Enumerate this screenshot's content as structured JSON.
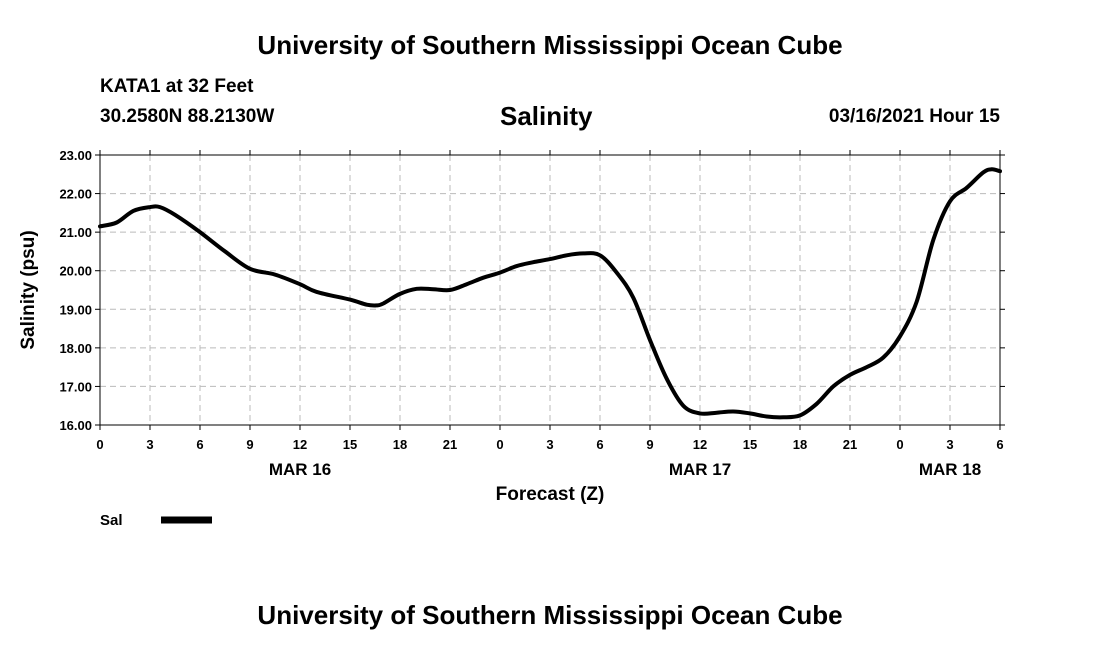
{
  "header": {
    "title": "University of Southern Mississippi Ocean Cube",
    "station": "KATA1 at 32 Feet",
    "coords": "30.2580N 88.2130W",
    "datetime": "03/16/2021 Hour 15"
  },
  "footer": {
    "title": "University of Southern Mississippi Ocean Cube"
  },
  "chart_data": {
    "type": "line",
    "title": "Salinity",
    "xlabel": "Forecast (Z)",
    "ylabel": "Salinity (psu)",
    "xlim": [
      0,
      54
    ],
    "ylim": [
      16.0,
      23.0
    ],
    "grid": true,
    "line_color": "#000000",
    "y_ticks": [
      "16.00",
      "17.00",
      "18.00",
      "19.00",
      "20.00",
      "21.00",
      "22.00",
      "23.00"
    ],
    "x_ticks": [
      {
        "x": 0,
        "label": "0"
      },
      {
        "x": 3,
        "label": "3"
      },
      {
        "x": 6,
        "label": "6"
      },
      {
        "x": 9,
        "label": "9"
      },
      {
        "x": 12,
        "label": "12"
      },
      {
        "x": 15,
        "label": "15"
      },
      {
        "x": 18,
        "label": "18"
      },
      {
        "x": 21,
        "label": "21"
      },
      {
        "x": 24,
        "label": "0"
      },
      {
        "x": 27,
        "label": "3"
      },
      {
        "x": 30,
        "label": "6"
      },
      {
        "x": 33,
        "label": "9"
      },
      {
        "x": 36,
        "label": "12"
      },
      {
        "x": 39,
        "label": "15"
      },
      {
        "x": 42,
        "label": "18"
      },
      {
        "x": 45,
        "label": "21"
      },
      {
        "x": 48,
        "label": "0"
      },
      {
        "x": 51,
        "label": "3"
      },
      {
        "x": 54,
        "label": "6"
      }
    ],
    "date_labels": [
      {
        "x": 12,
        "label": "MAR 16"
      },
      {
        "x": 36,
        "label": "MAR 17"
      },
      {
        "x": 51,
        "label": "MAR 18"
      }
    ],
    "legend": {
      "position": "bottom-left",
      "label": "Sal"
    },
    "series": [
      {
        "name": "Sal",
        "x": [
          0,
          1,
          2,
          3,
          3.6,
          4.5,
          6,
          7.5,
          9,
          10.5,
          12,
          13,
          15,
          16,
          16.6,
          17,
          18,
          19,
          20,
          21,
          22,
          23,
          24,
          25,
          26,
          27,
          28,
          29,
          30,
          31,
          32,
          33,
          34,
          35,
          36,
          37,
          38,
          39,
          40,
          41,
          42,
          43,
          44,
          45,
          46,
          47,
          48,
          49,
          50,
          51,
          52,
          53,
          53.5,
          54
        ],
        "y": [
          21.15,
          21.25,
          21.55,
          21.65,
          21.65,
          21.45,
          21.0,
          20.5,
          20.05,
          19.9,
          19.65,
          19.45,
          19.25,
          19.12,
          19.1,
          19.15,
          19.4,
          19.53,
          19.52,
          19.5,
          19.65,
          19.82,
          19.95,
          20.12,
          20.22,
          20.3,
          20.4,
          20.45,
          20.4,
          19.95,
          19.3,
          18.2,
          17.2,
          16.5,
          16.3,
          16.32,
          16.35,
          16.3,
          16.22,
          16.2,
          16.25,
          16.55,
          17.0,
          17.3,
          17.5,
          17.75,
          18.3,
          19.2,
          20.8,
          21.8,
          22.15,
          22.55,
          22.63,
          22.58
        ]
      }
    ]
  }
}
